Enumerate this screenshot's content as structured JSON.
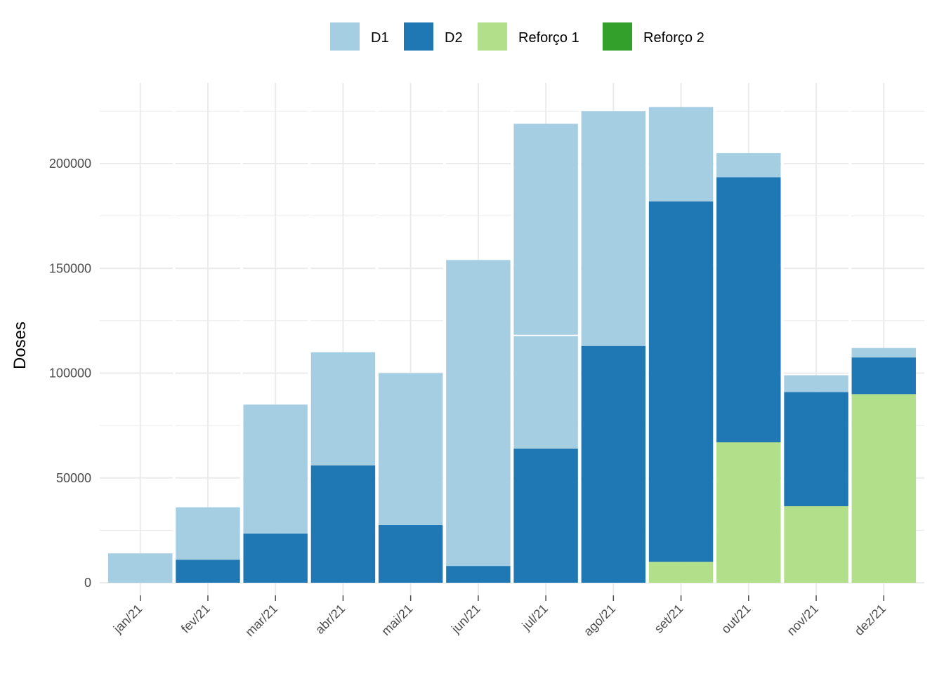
{
  "chart_data": {
    "type": "bar",
    "stacked": true,
    "title": "",
    "xlabel": "",
    "ylabel": "Doses",
    "ylim": [
      0,
      235000
    ],
    "yticks": [
      0,
      50000,
      100000,
      150000,
      200000
    ],
    "ytick_labels": [
      "0",
      "50000",
      "100000",
      "150000",
      "200000"
    ],
    "grid": true,
    "legend_position": "top",
    "categories": [
      "jan/21",
      "fev/21",
      "mar/21",
      "abr/21",
      "mai/21",
      "jun/21",
      "jul/21",
      "ago/21",
      "set/21",
      "out/21",
      "nov/21",
      "dez/21"
    ],
    "series": [
      {
        "name": "Reforço 2",
        "color": "#33a02c",
        "values": [
          0,
          0,
          0,
          0,
          0,
          0,
          0,
          0,
          0,
          0,
          0,
          0
        ]
      },
      {
        "name": "Reforço 1",
        "color": "#b2df8a",
        "values": [
          0,
          0,
          0,
          0,
          0,
          0,
          0,
          0,
          10000,
          67000,
          36500,
          90000
        ]
      },
      {
        "name": "D2",
        "color": "#1f78b4",
        "values": [
          0,
          11000,
          23500,
          56000,
          27500,
          8000,
          64000,
          113000,
          172000,
          126500,
          54500,
          17500
        ]
      },
      {
        "name": "D1",
        "color": "#a6cee3",
        "values": [
          14000,
          25000,
          61500,
          54000,
          72500,
          146000,
          155000,
          112000,
          45000,
          11500,
          8000,
          4500
        ]
      }
    ],
    "segment_breaks": [
      {
        "category": "jul/21",
        "series": "D1",
        "at": 118000
      }
    ],
    "legend_order": [
      "D1",
      "D2",
      "Reforço 1",
      "Reforço 2"
    ],
    "grid_color": "#ebebeb",
    "tick_color": "#4d4d4d"
  }
}
